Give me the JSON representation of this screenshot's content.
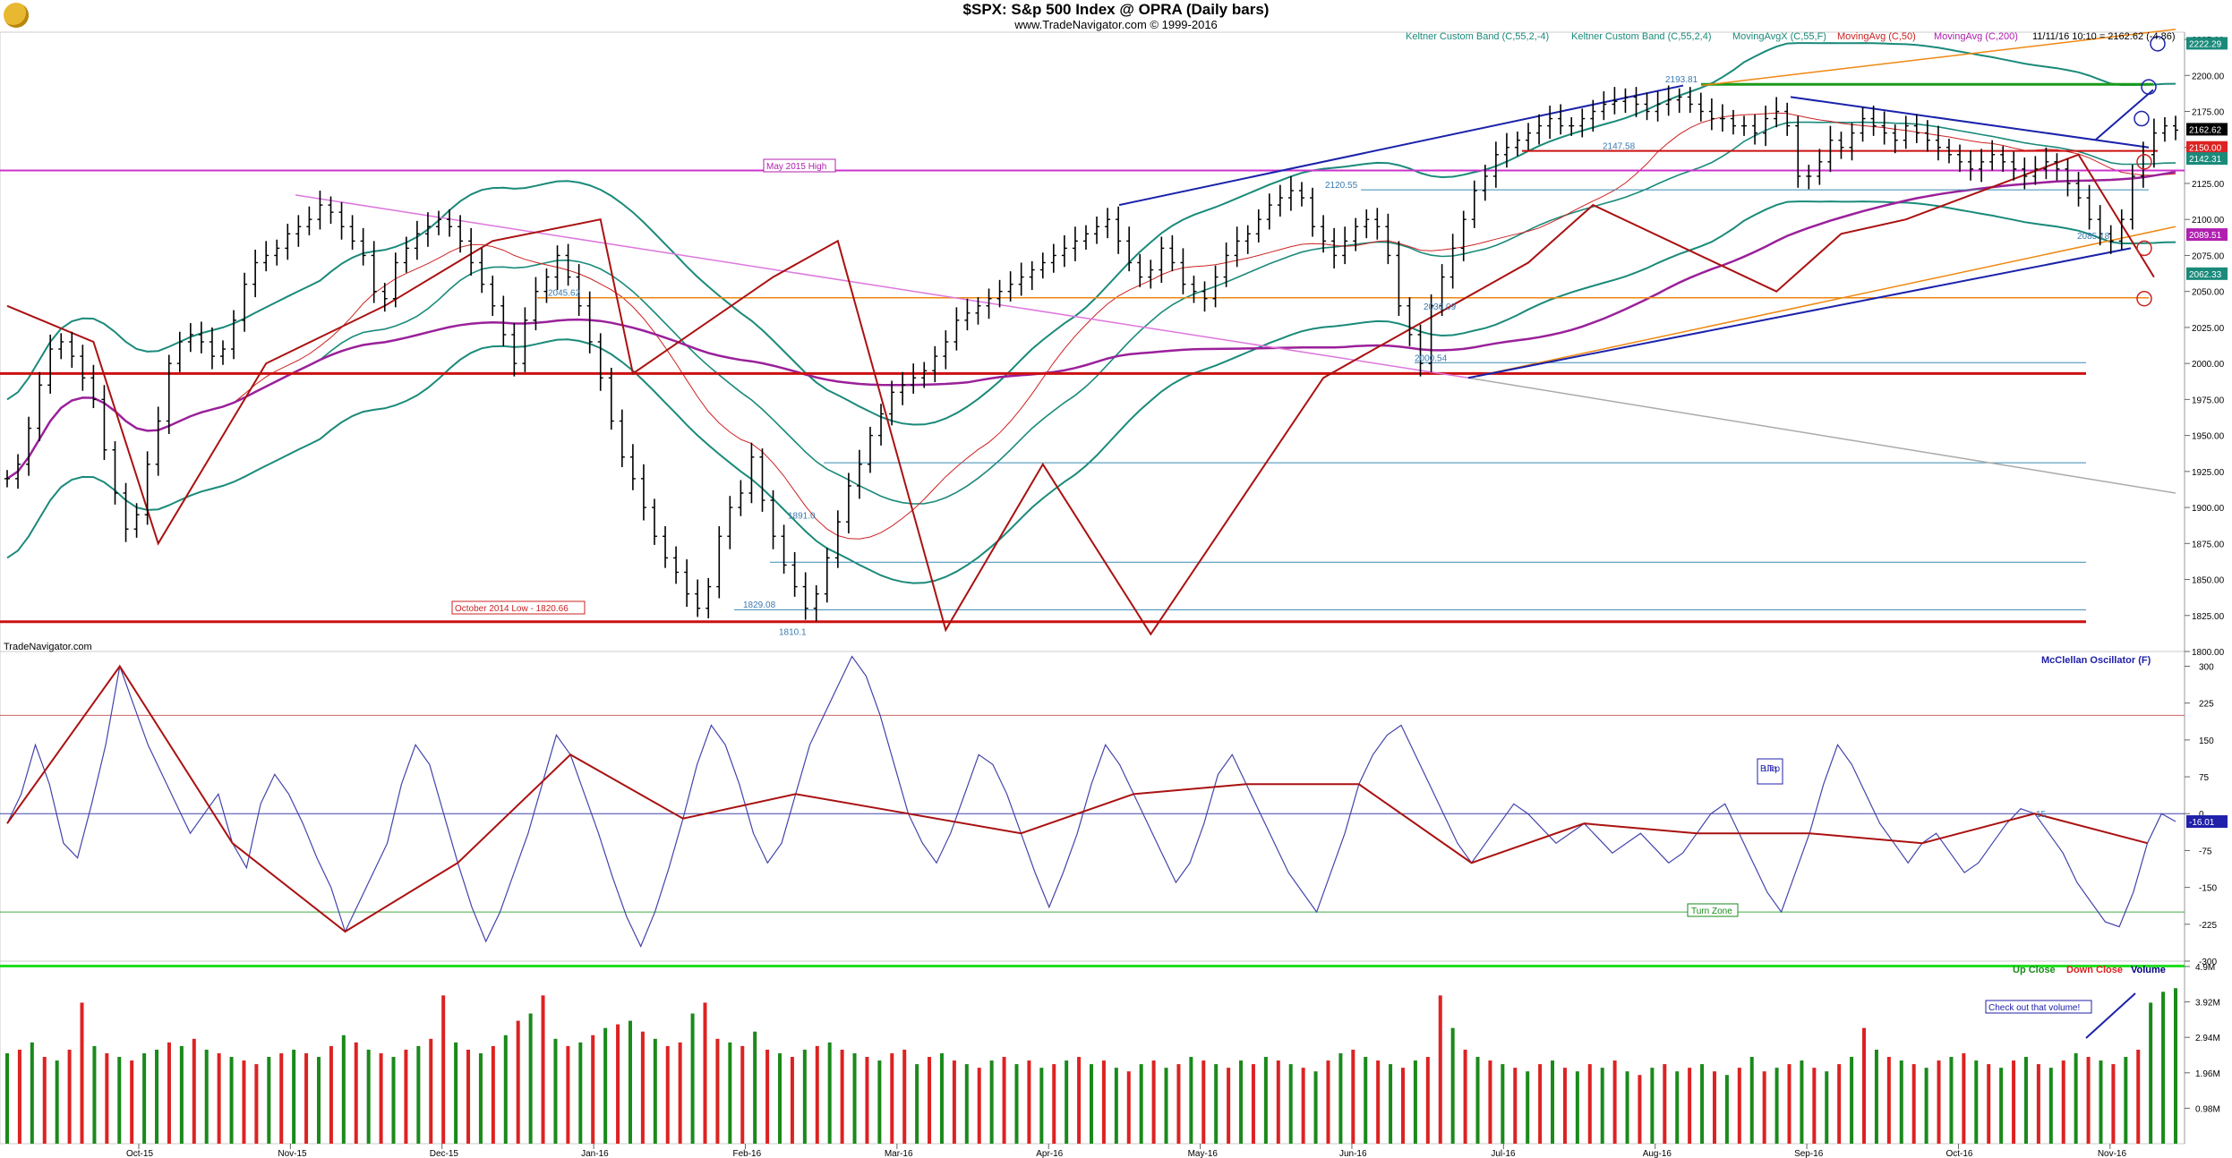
{
  "header": {
    "title": "$SPX:  S&p 500 Index @ OPRA  (Daily bars)",
    "subtitle": "www.TradeNavigator.com © 1999-2016",
    "timestamp": "11/11/16 10:10 = 2162.62 (-4.86)"
  },
  "watermark": "TradeNavigator.com",
  "chart_data": [
    {
      "type": "candlestick",
      "panel": "price",
      "title": "$SPX:  S&p 500 Index @ OPRA  (Daily bars)",
      "legend": [
        {
          "name": "Keltner Custom Band (C,55,2,-4)",
          "color": "#1a8a7a"
        },
        {
          "name": "Keltner Custom Band (C,55,2,4)",
          "color": "#1a8a7a"
        },
        {
          "name": "MovingAvgX (C,55,F)",
          "color": "#1a8a7a"
        },
        {
          "name": "MovingAvg (C,50)",
          "color": "#cc2222"
        },
        {
          "name": "MovingAvg (C,200)",
          "color": "#b020b0"
        }
      ],
      "x_months": [
        "Oct-15",
        "Nov-15",
        "Dec-15",
        "Jan-16",
        "Feb-16",
        "Mar-16",
        "Apr-16",
        "May-16",
        "Jun-16",
        "Jul-16",
        "Aug-16",
        "Sep-16",
        "Oct-16",
        "Nov-16"
      ],
      "y_ticks": [
        "2225.00",
        "2200.00",
        "2175.00",
        "2150.00",
        "2125.00",
        "2100.00",
        "2075.00",
        "2050.00",
        "2025.00",
        "2000.00",
        "1975.00",
        "1950.00",
        "1925.00",
        "1900.00",
        "1875.00",
        "1850.00",
        "1825.00",
        "1800.00"
      ],
      "ylim": [
        1800,
        2230
      ],
      "price_close": [
        1920,
        1930,
        1955,
        1985,
        2010,
        2015,
        2005,
        1990,
        1975,
        1940,
        1910,
        1885,
        1895,
        1930,
        1960,
        2000,
        2015,
        2020,
        2015,
        2005,
        2010,
        2030,
        2055,
        2070,
        2075,
        2080,
        2090,
        2095,
        2100,
        2110,
        2105,
        2095,
        2085,
        2075,
        2050,
        2045,
        2070,
        2080,
        2090,
        2095,
        2100,
        2095,
        2085,
        2070,
        2055,
        2040,
        2020,
        2000,
        2030,
        2050,
        2060,
        2075,
        2060,
        2040,
        2015,
        1990,
        1960,
        1935,
        1920,
        1900,
        1880,
        1865,
        1855,
        1840,
        1830,
        1845,
        1880,
        1900,
        1910,
        1935,
        1905,
        1880,
        1860,
        1845,
        1830,
        1840,
        1865,
        1890,
        1915,
        1930,
        1950,
        1965,
        1980,
        1985,
        1990,
        1995,
        2005,
        2015,
        2030,
        2035,
        2040,
        2045,
        2050,
        2055,
        2060,
        2065,
        2070,
        2075,
        2080,
        2085,
        2090,
        2095,
        2100,
        2085,
        2070,
        2060,
        2065,
        2080,
        2070,
        2055,
        2050,
        2045,
        2060,
        2075,
        2085,
        2090,
        2100,
        2110,
        2115,
        2120,
        2115,
        2095,
        2085,
        2075,
        2085,
        2095,
        2100,
        2095,
        2075,
        2040,
        2020,
        2000,
        2040,
        2060,
        2080,
        2100,
        2120,
        2130,
        2145,
        2150,
        2155,
        2160,
        2165,
        2170,
        2165,
        2165,
        2170,
        2175,
        2180,
        2182,
        2185,
        2180,
        2175,
        2180,
        2183,
        2185,
        2180,
        2175,
        2170,
        2170,
        2165,
        2165,
        2160,
        2170,
        2175,
        2165,
        2130,
        2130,
        2140,
        2155,
        2150,
        2160,
        2170,
        2165,
        2160,
        2155,
        2165,
        2160,
        2155,
        2150,
        2145,
        2140,
        2135,
        2140,
        2145,
        2140,
        2135,
        2130,
        2135,
        2140,
        2135,
        2125,
        2115,
        2100,
        2090,
        2085,
        2100,
        2130,
        2145,
        2160,
        2165,
        2162
      ]
    },
    {
      "type": "line",
      "panel": "oscillator",
      "title": "McClellan Oscillator (F)",
      "y_ticks": [
        "300",
        "225",
        "150",
        "75",
        "0",
        "-75",
        "-150",
        "-225",
        "-300"
      ],
      "ylim": [
        -300,
        330
      ],
      "last_value": "-16.01",
      "values": [
        -20,
        40,
        140,
        60,
        -60,
        -90,
        20,
        140,
        300,
        220,
        140,
        80,
        20,
        -40,
        0,
        40,
        -60,
        -110,
        20,
        80,
        40,
        -20,
        -90,
        -150,
        -240,
        -180,
        -120,
        -60,
        60,
        140,
        100,
        0,
        -100,
        -190,
        -260,
        -200,
        -120,
        -40,
        60,
        160,
        120,
        40,
        -40,
        -130,
        -210,
        -270,
        -200,
        -110,
        -10,
        100,
        180,
        140,
        60,
        -40,
        -100,
        -60,
        40,
        140,
        200,
        260,
        320,
        280,
        200,
        100,
        0,
        -60,
        -100,
        -40,
        40,
        120,
        100,
        40,
        -40,
        -120,
        -190,
        -120,
        -40,
        60,
        140,
        100,
        40,
        -20,
        -80,
        -140,
        -100,
        -20,
        80,
        120,
        60,
        0,
        -60,
        -120,
        -160,
        -200,
        -120,
        -40,
        60,
        120,
        160,
        180,
        120,
        60,
        0,
        -60,
        -100,
        -60,
        -20,
        20,
        0,
        -30,
        -60,
        -40,
        -20,
        -50,
        -80,
        -60,
        -40,
        -70,
        -100,
        -80,
        -40,
        0,
        20,
        -40,
        -100,
        -160,
        -200,
        -120,
        -40,
        60,
        140,
        100,
        40,
        -20,
        -60,
        -100,
        -60,
        -40,
        -80,
        -120,
        -100,
        -60,
        -20,
        10,
        0,
        -40,
        -80,
        -140,
        -180,
        -220,
        -230,
        -160,
        -60,
        0,
        -16
      ],
      "threshold_high": 200,
      "threshold_low": -200
    },
    {
      "type": "bar",
      "panel": "volume",
      "title": "Volume",
      "legend": [
        {
          "name": "Up Close",
          "color": "#1a8a1a"
        },
        {
          "name": "Down Close",
          "color": "#dd2222"
        },
        {
          "name": "Volume",
          "color": "#000080"
        }
      ],
      "y_ticks": [
        "4.9M",
        "3.92M",
        "2.94M",
        "1.96M",
        "0.98M"
      ],
      "ylim": [
        0,
        4.9
      ],
      "values": [
        2.5,
        2.6,
        2.8,
        2.4,
        2.3,
        2.6,
        3.9,
        2.7,
        2.5,
        2.4,
        2.3,
        2.5,
        2.6,
        2.8,
        2.7,
        2.9,
        2.6,
        2.5,
        2.4,
        2.3,
        2.2,
        2.4,
        2.5,
        2.6,
        2.5,
        2.4,
        2.7,
        3.0,
        2.8,
        2.6,
        2.5,
        2.4,
        2.6,
        2.7,
        2.9,
        4.1,
        2.8,
        2.6,
        2.5,
        2.7,
        3.0,
        3.4,
        3.6,
        4.1,
        2.9,
        2.7,
        2.8,
        3.0,
        3.2,
        3.3,
        3.4,
        3.1,
        2.9,
        2.7,
        2.8,
        3.6,
        3.9,
        2.9,
        2.8,
        2.7,
        3.1,
        2.6,
        2.5,
        2.4,
        2.6,
        2.7,
        2.8,
        2.6,
        2.5,
        2.4,
        2.3,
        2.5,
        2.6,
        2.2,
        2.4,
        2.5,
        2.3,
        2.2,
        2.1,
        2.3,
        2.4,
        2.2,
        2.3,
        2.1,
        2.2,
        2.3,
        2.4,
        2.2,
        2.3,
        2.1,
        2.0,
        2.2,
        2.3,
        2.1,
        2.2,
        2.4,
        2.3,
        2.2,
        2.1,
        2.3,
        2.2,
        2.4,
        2.3,
        2.2,
        2.1,
        2.0,
        2.3,
        2.5,
        2.6,
        2.4,
        2.3,
        2.2,
        2.1,
        2.3,
        2.4,
        4.1,
        3.2,
        2.6,
        2.4,
        2.3,
        2.2,
        2.1,
        2.0,
        2.2,
        2.3,
        2.1,
        2.0,
        2.2,
        2.1,
        2.3,
        2.0,
        1.9,
        2.1,
        2.2,
        2.0,
        2.1,
        2.2,
        2.0,
        1.9,
        2.1,
        2.4,
        2.0,
        2.1,
        2.2,
        2.3,
        2.1,
        2.0,
        2.2,
        2.4,
        3.2,
        2.6,
        2.4,
        2.3,
        2.2,
        2.1,
        2.3,
        2.4,
        2.5,
        2.3,
        2.2,
        2.1,
        2.3,
        2.4,
        2.2,
        2.1,
        2.3,
        2.5,
        2.4,
        2.3,
        2.2,
        2.4,
        2.6,
        3.9,
        4.2,
        4.3
      ],
      "up": [
        1,
        0,
        1,
        0,
        1,
        0,
        0,
        1,
        0,
        1,
        0,
        1,
        1,
        0,
        1,
        0,
        1,
        0,
        1,
        0,
        0,
        1,
        0,
        1,
        0,
        1,
        0,
        1,
        0,
        1,
        0,
        1,
        0,
        1,
        0,
        0,
        1,
        0,
        1,
        0,
        1,
        0,
        1,
        0,
        1,
        0,
        1,
        0,
        1,
        0,
        1,
        0,
        1,
        0,
        0,
        1,
        0,
        0,
        1,
        0,
        1,
        0,
        1,
        0,
        1,
        0,
        1,
        0,
        1,
        0,
        1,
        0,
        0,
        1,
        0,
        1,
        0,
        1,
        0,
        1,
        0,
        1,
        0,
        1,
        0,
        1,
        0,
        1,
        0,
        1,
        0,
        1,
        0,
        1,
        0,
        1,
        0,
        1,
        0,
        1,
        0,
        1,
        0,
        1,
        0,
        1,
        0,
        1,
        0,
        1,
        0,
        1,
        0,
        1,
        0,
        0,
        1,
        0,
        1,
        0,
        1,
        0,
        1,
        0,
        1,
        0,
        1,
        0,
        1,
        0,
        1,
        0,
        1,
        0,
        1,
        0,
        1,
        0,
        1,
        0,
        1,
        0,
        1,
        0,
        1,
        0,
        1,
        0,
        1,
        0,
        1,
        0,
        1,
        0,
        1,
        0,
        1,
        0,
        1,
        0,
        1,
        0,
        1,
        0,
        1,
        0,
        1,
        0,
        1,
        0,
        1,
        0,
        1,
        1,
        1
      ]
    }
  ],
  "annotations": {
    "may_2015_high": "May 2015 High",
    "oct_2014_low": "October 2014 Low - 1820.66",
    "price_labels": [
      "2193.81",
      "2120.55",
      "2147.58",
      "2036.09",
      "2000.54",
      "2085.18",
      "2045.62",
      "1829.08",
      "1891.0",
      "1810.1"
    ],
    "bull_trap": "Bull Trap",
    "turn_zone": "Turn Zone",
    "check_volume": "Check out that volume!",
    "osc_level": "15"
  },
  "price_tags": [
    {
      "text": "2222.29",
      "bg": "#1a8a7a"
    },
    {
      "text": "2162.62",
      "bg": "#000000"
    },
    {
      "text": "2150.00",
      "bg": "#dd2222"
    },
    {
      "text": "2142.31",
      "bg": "#1a8a7a"
    },
    {
      "text": "2089.51",
      "bg": "#b020b0"
    },
    {
      "text": "2062.33",
      "bg": "#1a8a7a"
    }
  ],
  "colors": {
    "keltner": "#1a8a7a",
    "ma50": "#cc2222",
    "ma200": "#9a209a",
    "candle": "#000000",
    "trend_red": "#aa1111",
    "trend_blue": "#1a22aa",
    "orange": "#ee8811",
    "pink": "#dd77dd",
    "osc_line": "#4444aa",
    "up_vol": "#1a8a1a",
    "down_vol": "#dd2222"
  }
}
